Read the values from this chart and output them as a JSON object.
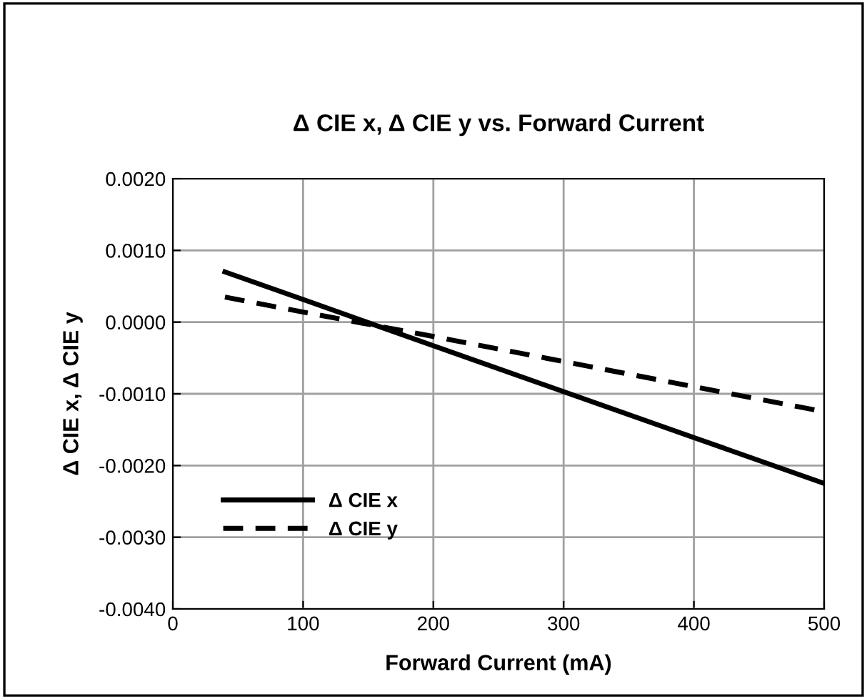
{
  "chart_data": {
    "type": "line",
    "title": "Δ CIE x, Δ CIE y vs. Forward Current",
    "xlabel": "Forward Current (mA)",
    "ylabel": "Δ CIE x, Δ CIE y",
    "x": [
      40,
      100,
      200,
      300,
      400,
      500
    ],
    "series": [
      {
        "name": "Δ CIE x",
        "color": "#000000",
        "line_style": "solid",
        "values": [
          0.0007,
          0.000315,
          -0.00033,
          -0.00097,
          -0.00161,
          -0.00225
        ]
      },
      {
        "name": "Δ CIE y",
        "color": "#000000",
        "line_style": "dashed",
        "values": [
          0.00035,
          0.00014,
          -0.0002,
          -0.00055,
          -0.0009,
          -0.00125
        ]
      }
    ],
    "xlim": [
      0,
      500
    ],
    "xticks": [
      0,
      100,
      200,
      300,
      400,
      500
    ],
    "ylim": [
      -0.004,
      0.002
    ],
    "yticks": [
      {
        "value": -0.004,
        "label": "-0.0040"
      },
      {
        "value": -0.003,
        "label": "-0.0030"
      },
      {
        "value": -0.002,
        "label": "-0.0020"
      },
      {
        "value": -0.001,
        "label": "-0.0010"
      },
      {
        "value": 0,
        "label": "0.0000"
      },
      {
        "value": 0.001,
        "label": "0.0010"
      },
      {
        "value": 0.002,
        "label": "0.0020"
      }
    ],
    "grid": true,
    "legend": "bottom left",
    "marker": "none"
  }
}
